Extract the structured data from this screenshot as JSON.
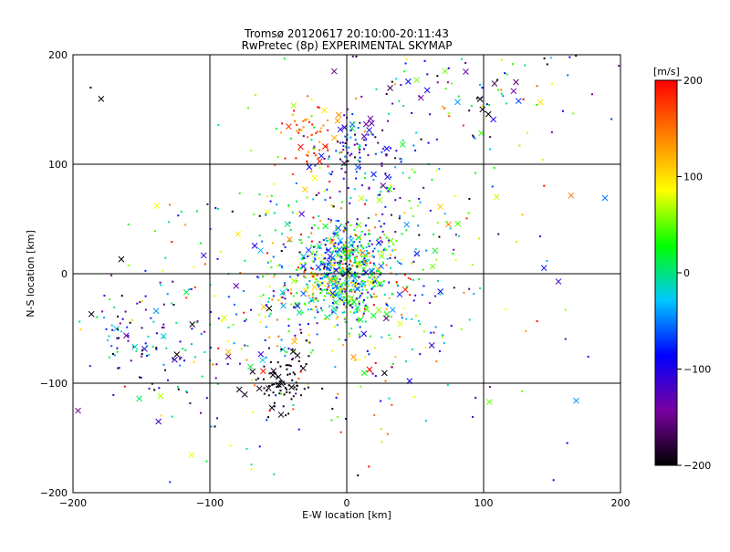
{
  "chart_data": {
    "type": "scatter",
    "title": "Tromsø 20120617 20:10:00-20:11:43",
    "subtitle": "RwPretec (8p) EXPERIMENTAL SKYMAP",
    "xlabel": "E-W location [km]",
    "ylabel": "N-S location [km]",
    "xlim": [
      -200,
      200
    ],
    "ylim": [
      -200,
      200
    ],
    "xticks": [
      -200,
      -100,
      0,
      100,
      200
    ],
    "yticks": [
      -200,
      -100,
      0,
      100,
      200
    ],
    "grid_lines": [
      -100,
      0,
      100
    ],
    "grid": true,
    "colorbar": {
      "label": "[m/s]",
      "range": [
        -200,
        200
      ],
      "ticks": [
        200,
        100,
        0,
        -100,
        -200
      ],
      "colormap": [
        "#000000",
        "#7a00a0",
        "#0000ff",
        "#00c8ff",
        "#00ff00",
        "#ffff00",
        "#ff8000",
        "#ff0000"
      ]
    },
    "point_clusters": [
      {
        "center": [
          0,
          5
        ],
        "spread": [
          15,
          20
        ],
        "count": 500,
        "value_mean": 0,
        "value_spread": 80
      },
      {
        "center": [
          5,
          0
        ],
        "spread": [
          40,
          50
        ],
        "count": 450,
        "value_mean": 10,
        "value_spread": 100
      },
      {
        "center": [
          10,
          110
        ],
        "spread": [
          15,
          20
        ],
        "count": 120,
        "value_mean": -90,
        "value_spread": 60
      },
      {
        "center": [
          -25,
          125
        ],
        "spread": [
          10,
          15
        ],
        "count": 60,
        "value_mean": 160,
        "value_spread": 40
      },
      {
        "center": [
          -45,
          -100
        ],
        "spread": [
          10,
          14
        ],
        "count": 80,
        "value_mean": -195,
        "value_spread": 10
      },
      {
        "center": [
          -150,
          -60
        ],
        "spread": [
          25,
          25
        ],
        "count": 90,
        "value_mean": -90,
        "value_spread": 90
      },
      {
        "center": [
          90,
          170
        ],
        "spread": [
          50,
          25
        ],
        "count": 100,
        "value_mean": -60,
        "value_spread": 110
      },
      {
        "center": [
          -80,
          -50
        ],
        "spread": [
          50,
          60
        ],
        "count": 160,
        "value_mean": -30,
        "value_spread": 110
      },
      {
        "center": [
          0,
          0
        ],
        "spread": [
          120,
          120
        ],
        "count": 180,
        "value_mean": 0,
        "value_spread": 130
      }
    ],
    "marker_symbols": [
      "dot",
      "x"
    ]
  }
}
